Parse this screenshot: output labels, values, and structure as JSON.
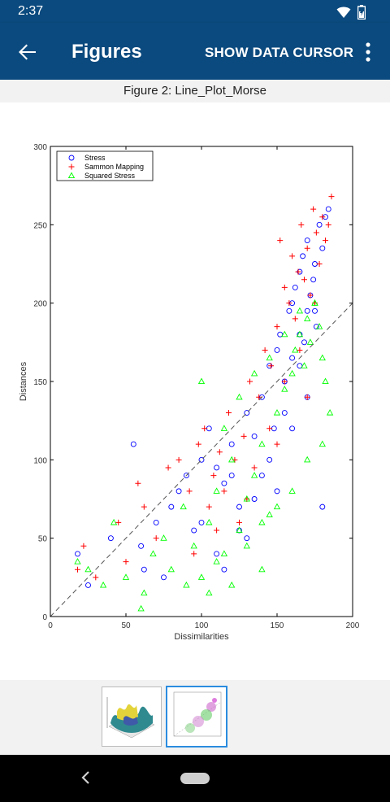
{
  "status": {
    "time": "2:37",
    "icons": [
      "wifi-icon",
      "battery-icon"
    ]
  },
  "app_bar": {
    "back_icon": "arrow-left-icon",
    "title": "Figures",
    "action_label": "SHOW DATA CURSOR",
    "overflow_icon": "more-vert-icon",
    "color": "#0b4a7e"
  },
  "figure": {
    "title": "Figure 2: Line_Plot_Morse"
  },
  "chart_data": {
    "type": "scatter",
    "xlabel": "Dissimilarities",
    "ylabel": "Distances",
    "xlim": [
      0,
      200
    ],
    "ylim": [
      0,
      300
    ],
    "xticks": [
      "0",
      "50",
      "100",
      "150",
      "200"
    ],
    "yticks": [
      "0",
      "50",
      "100",
      "150",
      "200",
      "250",
      "300"
    ],
    "legend_position": "top-left",
    "reference_line": {
      "x": [
        0,
        200
      ],
      "y": [
        0,
        200
      ],
      "style": "dashed"
    },
    "series": [
      {
        "name": "Stress",
        "marker": "circle",
        "color": "#0000ff",
        "x": [
          18,
          25,
          40,
          55,
          60,
          62,
          70,
          75,
          80,
          85,
          90,
          95,
          100,
          105,
          110,
          115,
          120,
          125,
          130,
          135,
          140,
          140,
          145,
          148,
          150,
          152,
          155,
          158,
          160,
          160,
          162,
          165,
          165,
          167,
          168,
          170,
          170,
          172,
          174,
          175,
          176,
          178,
          180,
          182,
          184,
          110,
          125,
          135,
          145,
          155,
          165,
          175,
          100,
          120,
          130,
          150,
          160,
          170,
          180,
          115
        ],
        "y": [
          40,
          20,
          50,
          110,
          45,
          30,
          60,
          25,
          70,
          80,
          90,
          55,
          100,
          120,
          95,
          85,
          110,
          70,
          130,
          115,
          140,
          90,
          160,
          120,
          170,
          180,
          150,
          195,
          200,
          165,
          210,
          220,
          180,
          230,
          175,
          240,
          195,
          205,
          215,
          225,
          185,
          250,
          235,
          255,
          260,
          40,
          55,
          75,
          100,
          130,
          160,
          195,
          60,
          90,
          50,
          80,
          120,
          140,
          70,
          30
        ]
      },
      {
        "name": "Sammon Mapping",
        "marker": "plus",
        "color": "#ff0000",
        "x": [
          18,
          22,
          30,
          45,
          50,
          58,
          62,
          70,
          78,
          85,
          92,
          98,
          102,
          108,
          112,
          118,
          122,
          128,
          132,
          138,
          142,
          146,
          150,
          152,
          155,
          158,
          160,
          162,
          164,
          166,
          168,
          170,
          172,
          174,
          176,
          178,
          180,
          182,
          184,
          186,
          105,
          115,
          125,
          135,
          145,
          155,
          165,
          175,
          95,
          110,
          130,
          150,
          170
        ],
        "y": [
          30,
          45,
          25,
          60,
          35,
          85,
          70,
          50,
          95,
          100,
          80,
          110,
          120,
          90,
          105,
          130,
          100,
          115,
          150,
          140,
          170,
          160,
          185,
          240,
          210,
          200,
          230,
          190,
          220,
          250,
          215,
          235,
          205,
          260,
          245,
          225,
          255,
          240,
          250,
          268,
          70,
          80,
          60,
          95,
          120,
          150,
          170,
          200,
          40,
          55,
          75,
          110,
          140
        ]
      },
      {
        "name": "Squared Stress",
        "marker": "triangle",
        "color": "#00ff00",
        "x": [
          18,
          25,
          35,
          42,
          50,
          60,
          62,
          68,
          75,
          80,
          88,
          95,
          100,
          105,
          110,
          115,
          120,
          125,
          130,
          135,
          140,
          145,
          150,
          155,
          160,
          162,
          165,
          168,
          170,
          172,
          175,
          178,
          180,
          182,
          185,
          100,
          110,
          120,
          130,
          140,
          150,
          160,
          170,
          180,
          115,
          125,
          135,
          145,
          155,
          165,
          175,
          90,
          105,
          140
        ],
        "y": [
          35,
          30,
          20,
          60,
          25,
          5,
          15,
          40,
          50,
          30,
          70,
          45,
          150,
          60,
          80,
          40,
          100,
          55,
          75,
          90,
          110,
          65,
          130,
          145,
          155,
          170,
          180,
          160,
          190,
          175,
          200,
          185,
          165,
          150,
          130,
          25,
          35,
          20,
          45,
          60,
          70,
          80,
          100,
          110,
          120,
          140,
          155,
          165,
          180,
          195,
          200,
          20,
          15,
          30
        ]
      }
    ]
  },
  "thumbnails": [
    {
      "name": "thumb-surface-plot",
      "selected": false
    },
    {
      "name": "thumb-scatter-plot",
      "selected": true
    }
  ],
  "nav": {
    "back_icon": "nav-back-icon",
    "home_icon": "nav-home-pill-icon"
  }
}
